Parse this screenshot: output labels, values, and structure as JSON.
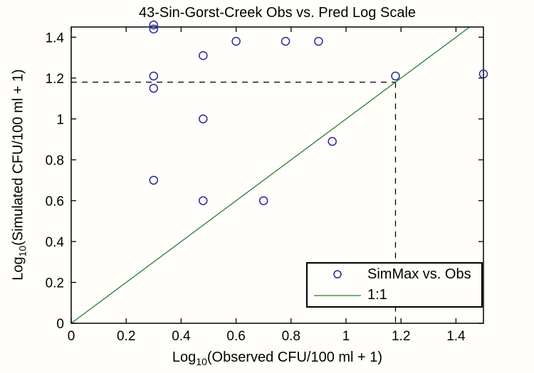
{
  "chart_data": {
    "type": "scatter",
    "title": "43-Sin-Gorst-Creek Obs vs. Pred Log Scale",
    "xlabel": {
      "prefix": "Log",
      "sub": "10",
      "suffix": "(Observed CFU/100 ml + 1)"
    },
    "ylabel": {
      "prefix": "Log",
      "sub": "10",
      "suffix": "(Simulated CFU/100 ml + 1)"
    },
    "xlim": [
      0,
      1.5
    ],
    "ylim": [
      0,
      1.45
    ],
    "xticks": [
      0,
      0.2,
      0.4,
      0.6,
      0.8,
      1,
      1.2,
      1.4
    ],
    "yticks": [
      0,
      0.2,
      0.4,
      0.6,
      0.8,
      1,
      1.2,
      1.4
    ],
    "xtick_labels": [
      "0",
      "0.2",
      "0.4",
      "0.6",
      "0.8",
      "1",
      "1.2",
      "1.4"
    ],
    "ytick_labels": [
      "0",
      "0.2",
      "0.4",
      "0.6",
      "0.8",
      "1",
      "1.2",
      "1.4"
    ],
    "grid": false,
    "legend_position": "bottom-right",
    "series": [
      {
        "name": "SimMax vs. Obs",
        "type": "scatter",
        "marker": "circle",
        "color": "#28289a",
        "points": [
          [
            0.3,
            1.46
          ],
          [
            0.3,
            1.44
          ],
          [
            0.3,
            1.21
          ],
          [
            0.3,
            1.15
          ],
          [
            0.3,
            0.7
          ],
          [
            0.48,
            1.31
          ],
          [
            0.48,
            1.0
          ],
          [
            0.48,
            0.6
          ],
          [
            0.6,
            1.38
          ],
          [
            0.7,
            0.6
          ],
          [
            0.78,
            1.38
          ],
          [
            0.9,
            1.38
          ],
          [
            0.95,
            0.89
          ],
          [
            1.18,
            1.21
          ],
          [
            1.5,
            1.22
          ]
        ]
      },
      {
        "name": "1:1",
        "type": "line",
        "color": "#267f33",
        "points": [
          [
            0,
            0
          ],
          [
            1.45,
            1.45
          ]
        ]
      }
    ],
    "annotations": {
      "dashed_crosshair": {
        "x": 1.18,
        "y": 1.18,
        "style": "dashed",
        "color": "#000000"
      }
    },
    "axis_color": "#000000",
    "background_color": "#fffefa"
  }
}
